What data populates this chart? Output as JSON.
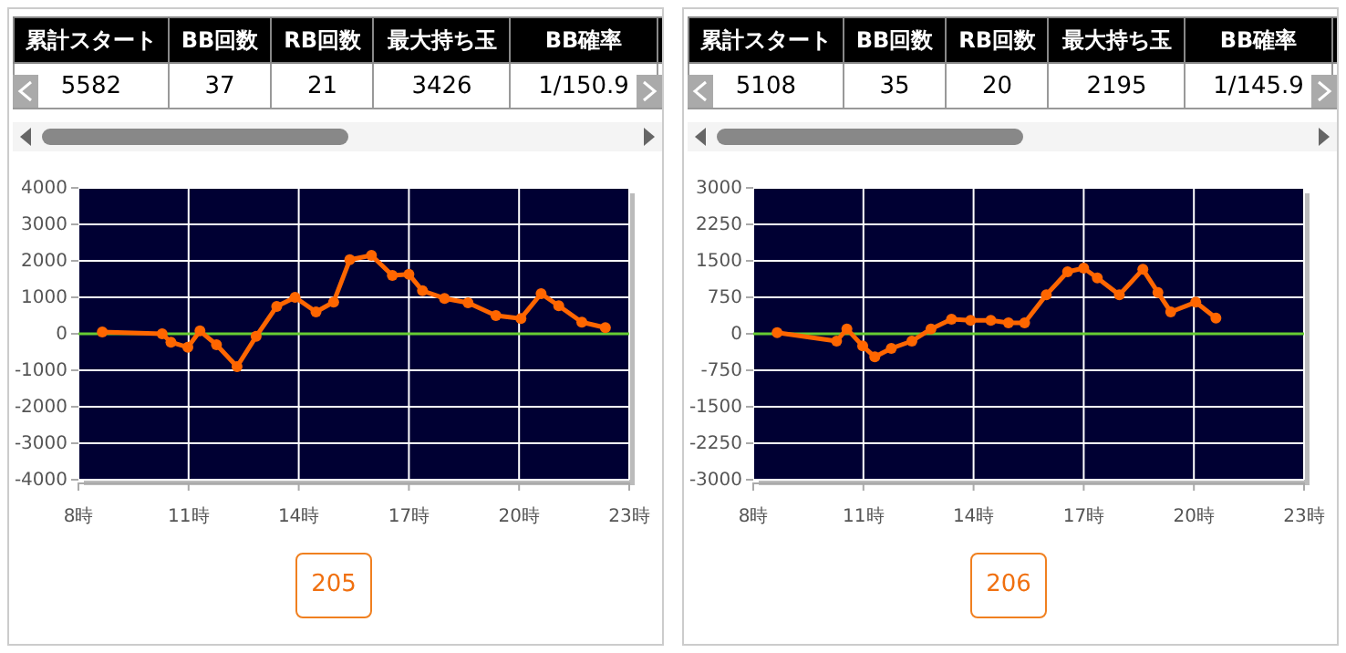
{
  "chart_data": [
    {
      "type": "other",
      "categories": [
        "累計スタート",
        "BB回数",
        "RB回数",
        "最大持ち玉",
        "BB確率"
      ],
      "value_labels": [
        "5582",
        "37",
        "21",
        "3426",
        "1/150.9"
      ]
    },
    {
      "type": "other",
      "categories": [
        "累計スタート",
        "BB回数",
        "RB回数",
        "最大持ち玉",
        "BB確率"
      ],
      "value_labels": [
        "5108",
        "35",
        "20",
        "2195",
        "1/145.9"
      ]
    },
    {
      "type": "line",
      "x": [
        8.65,
        10.28,
        10.52,
        10.98,
        11.31,
        11.76,
        12.32,
        12.84,
        13.4,
        13.9,
        14.47,
        14.95,
        15.39,
        15.98,
        16.55,
        17.0,
        17.37,
        17.97,
        18.61,
        19.37,
        20.05,
        20.6,
        21.08,
        21.71,
        22.35
      ],
      "series": [
        {
          "color": "#ff6600",
          "values": [
            50,
            0,
            -230,
            -370,
            80,
            -300,
            -900,
            -70,
            750,
            1000,
            600,
            870,
            2030,
            2150,
            1600,
            1630,
            1180,
            970,
            850,
            500,
            420,
            1100,
            770,
            320,
            170
          ]
        }
      ],
      "xlim": [
        8,
        23
      ],
      "xticks": [
        {
          "value": 8,
          "label": "8時"
        },
        {
          "value": 11,
          "label": "11時"
        },
        {
          "value": 14,
          "label": "14時"
        },
        {
          "value": 17,
          "label": "17時"
        },
        {
          "value": 20,
          "label": "20時"
        },
        {
          "value": 23,
          "label": "23時"
        }
      ],
      "ylim": [
        -4000,
        4000
      ],
      "yticks": [
        -4000,
        -3000,
        -2000,
        -1000,
        0,
        1000,
        2000,
        3000,
        4000
      ],
      "grid": true,
      "marker": "circle",
      "line_style": "solid",
      "ref_lines": [
        {
          "axis": "y",
          "value": 0,
          "color": "#66cc33"
        }
      ],
      "annotations": [
        "205"
      ]
    },
    {
      "type": "line",
      "x": [
        8.65,
        10.27,
        10.55,
        10.98,
        11.31,
        11.76,
        12.32,
        12.84,
        13.4,
        13.92,
        14.47,
        14.95,
        15.39,
        15.98,
        16.56,
        17.0,
        17.37,
        17.97,
        18.61,
        19.02,
        19.37,
        20.05,
        20.6
      ],
      "series": [
        {
          "color": "#ff6600",
          "values": [
            25,
            -150,
            100,
            -250,
            -475,
            -300,
            -150,
            100,
            300,
            275,
            275,
            225,
            225,
            800,
            1275,
            1350,
            1150,
            800,
            1325,
            850,
            450,
            650,
            325
          ]
        }
      ],
      "xlim": [
        8,
        23
      ],
      "xticks": [
        {
          "value": 8,
          "label": "8時"
        },
        {
          "value": 11,
          "label": "11時"
        },
        {
          "value": 14,
          "label": "14時"
        },
        {
          "value": 17,
          "label": "17時"
        },
        {
          "value": 20,
          "label": "20時"
        },
        {
          "value": 23,
          "label": "23時"
        }
      ],
      "ylim": [
        -3000,
        3000
      ],
      "yticks": [
        -3000,
        -2250,
        -1500,
        -750,
        0,
        750,
        1500,
        2250,
        3000
      ],
      "grid": true,
      "marker": "circle",
      "line_style": "solid",
      "ref_lines": [
        {
          "axis": "y",
          "value": 0,
          "color": "#66cc33"
        }
      ],
      "annotations": [
        "206"
      ]
    }
  ]
}
